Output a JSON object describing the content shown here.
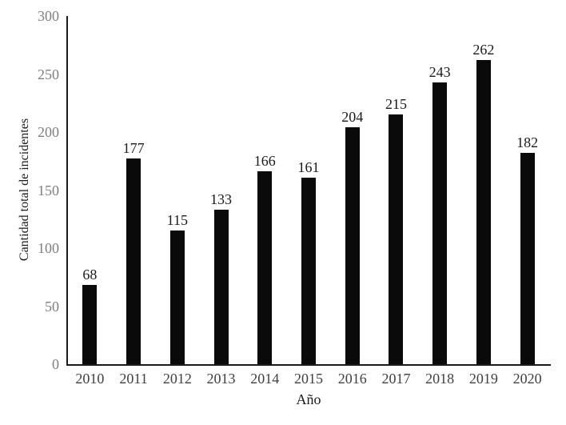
{
  "chart_data": {
    "type": "bar",
    "categories": [
      "2010",
      "2011",
      "2012",
      "2013",
      "2014",
      "2015",
      "2016",
      "2017",
      "2018",
      "2019",
      "2020"
    ],
    "values": [
      68,
      177,
      115,
      133,
      166,
      161,
      204,
      215,
      243,
      262,
      182
    ],
    "title": "",
    "xlabel": "Año",
    "ylabel": "Cantidad total de incidentes",
    "ylim": [
      0,
      300
    ],
    "yticks": [
      0,
      50,
      100,
      150,
      200,
      250,
      300
    ],
    "grid": false,
    "legend_position": "none",
    "value_labels_shown": true,
    "colors": {
      "bar": "#0a0a0a",
      "axis": "#1a1a1a",
      "y_tick_label": "#7f7f7f",
      "x_tick_label": "#404040",
      "value_label": "#1a1a1a",
      "background": "#ffffff"
    }
  }
}
